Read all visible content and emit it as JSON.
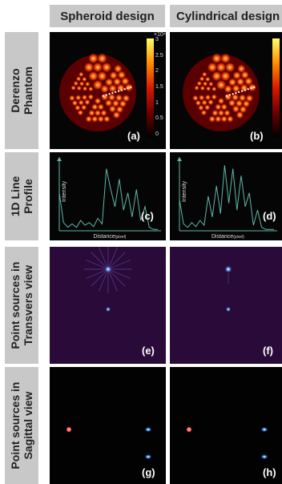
{
  "columns": [
    "Spheroid design",
    "Cylindrical design"
  ],
  "rows": [
    {
      "lines": [
        "Derenzo",
        "Phantom"
      ]
    },
    {
      "lines": [
        "1D Line",
        "Profile"
      ]
    },
    {
      "lines": [
        "Point sources in",
        "Transvers view"
      ]
    },
    {
      "lines": [
        "Point sources in",
        "Sagittal view"
      ]
    }
  ],
  "panel_labels": [
    "(a)",
    "(b)",
    "(c)",
    "(d)",
    "(e)",
    "(f)",
    "(g)",
    "(h)"
  ],
  "colorbar": {
    "exponent": "×10⁴",
    "ticks": [
      "3",
      "2.5",
      "2",
      "1.5",
      "1",
      "0.5",
      "0"
    ]
  },
  "profile": {
    "xlabel_main": "Distance",
    "xlabel_sub": "(pixel)",
    "ylabel": "Intensity"
  },
  "colors": {
    "line": "#5fb8a8",
    "panel_bg": "#050505",
    "point_bg": "#2a0a38",
    "header_bg": "#c8c8c8"
  }
}
